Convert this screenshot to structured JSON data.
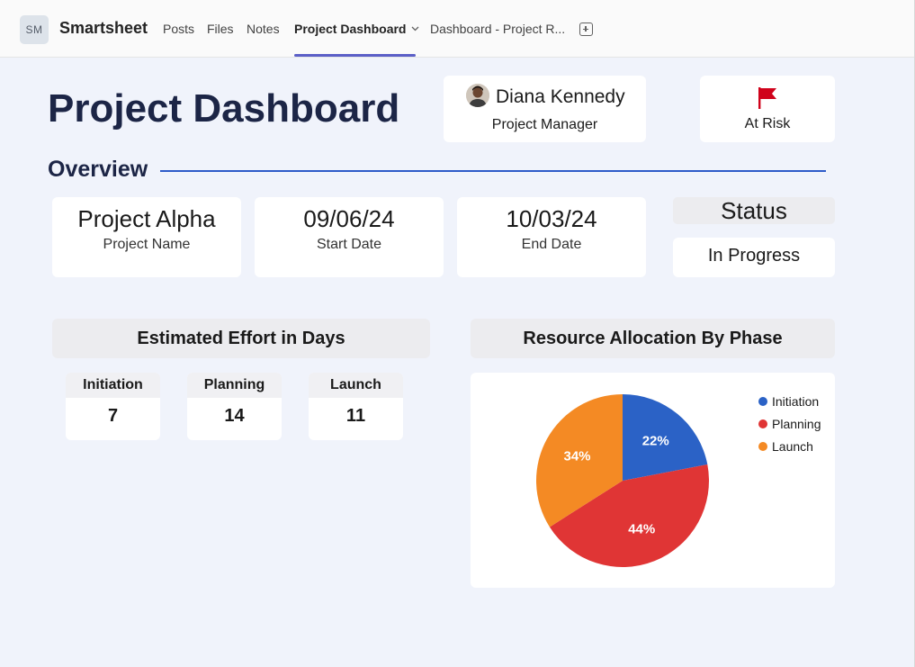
{
  "app": {
    "badge": "SM",
    "name": "Smartsheet",
    "tabs": [
      {
        "label": "Posts"
      },
      {
        "label": "Files"
      },
      {
        "label": "Notes"
      },
      {
        "label": "Project Dashboard"
      },
      {
        "label": "Dashboard - Project R..."
      }
    ]
  },
  "dashboard": {
    "title": "Project Dashboard",
    "manager": {
      "name": "Diana Kennedy",
      "role": "Project Manager"
    },
    "risk": {
      "label": "At Risk",
      "color": "#d0021b"
    },
    "overview_heading": "Overview",
    "info": [
      {
        "value": "Project Alpha",
        "label": "Project Name"
      },
      {
        "value": "09/06/24",
        "label": "Start Date"
      },
      {
        "value": "10/03/24",
        "label": "End Date"
      }
    ],
    "status": {
      "heading": "Status",
      "value": "In Progress"
    },
    "effort": {
      "heading": "Estimated Effort in Days",
      "items": [
        {
          "label": "Initiation",
          "value": "7"
        },
        {
          "label": "Planning",
          "value": "14"
        },
        {
          "label": "Launch",
          "value": "11"
        }
      ]
    },
    "allocation": {
      "heading": "Resource Allocation By Phase"
    }
  },
  "chart_data": {
    "type": "pie",
    "title": "Resource Allocation By Phase",
    "categories": [
      "Initiation",
      "Planning",
      "Launch"
    ],
    "values": [
      22,
      44,
      34
    ],
    "labels": [
      "22%",
      "44%",
      "34%"
    ],
    "colors": [
      "#2b62c6",
      "#e03535",
      "#f48a24"
    ],
    "legend": "right"
  }
}
